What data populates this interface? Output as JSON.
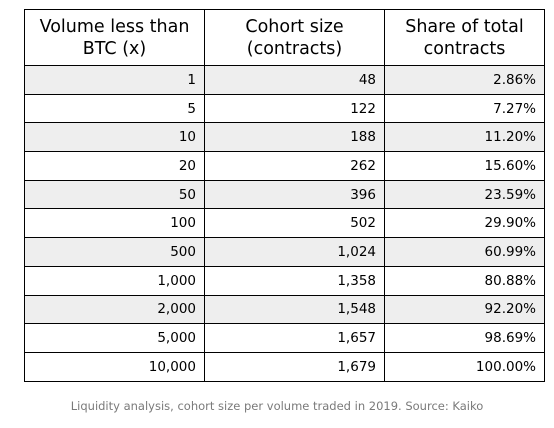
{
  "table": {
    "headers": [
      [
        "Volume less than",
        "BTC (x)"
      ],
      [
        "Cohort size",
        "(contracts)"
      ],
      [
        "Share of total",
        "contracts"
      ]
    ],
    "rows": [
      [
        "1",
        "48",
        "2.86%"
      ],
      [
        "5",
        "122",
        "7.27%"
      ],
      [
        "10",
        "188",
        "11.20%"
      ],
      [
        "20",
        "262",
        "15.60%"
      ],
      [
        "50",
        "396",
        "23.59%"
      ],
      [
        "100",
        "502",
        "29.90%"
      ],
      [
        "500",
        "1,024",
        "60.99%"
      ],
      [
        "1,000",
        "1,358",
        "80.88%"
      ],
      [
        "2,000",
        "1,548",
        "92.20%"
      ],
      [
        "5,000",
        "1,657",
        "98.69%"
      ],
      [
        "10,000",
        "1,679",
        "100.00%"
      ]
    ]
  },
  "caption": "Liquidity analysis, cohort size per volume traded in 2019. Source: Kaiko",
  "colors": {
    "shaded_row": "#eeeeee",
    "caption_text": "#7a7a7a"
  }
}
